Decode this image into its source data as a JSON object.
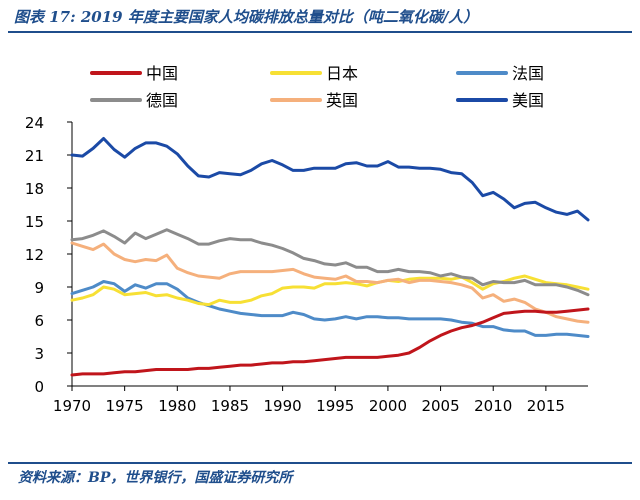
{
  "page": {
    "title": "图表 17:  2019 年度主要国家人均碳排放总量对比（吨二氧化碳/人）",
    "source": "资料来源：BP，世界银行，国盛证券研究所"
  },
  "colors": {
    "china": "#c0151b",
    "japan": "#f7e034",
    "france": "#4e8bc8",
    "germany": "#8c8c8c",
    "uk": "#f5b07c",
    "usa": "#1b4aa6",
    "axis": "#000000",
    "heading": "#1f4e8c"
  },
  "chart_data": {
    "type": "line",
    "title": "2019 年度主要国家人均碳排放总量对比（吨二氧化碳/人）",
    "xlabel": "",
    "ylabel": "",
    "ylim": [
      0,
      24
    ],
    "yticks": [
      0,
      3,
      6,
      9,
      12,
      15,
      18,
      21,
      24
    ],
    "xlim": [
      1970,
      2019
    ],
    "xticks": [
      1970,
      1975,
      1980,
      1985,
      1990,
      1995,
      2000,
      2005,
      2010,
      2015
    ],
    "legend_position": "top",
    "x": [
      1970,
      1971,
      1972,
      1973,
      1974,
      1975,
      1976,
      1977,
      1978,
      1979,
      1980,
      1981,
      1982,
      1983,
      1984,
      1985,
      1986,
      1987,
      1988,
      1989,
      1990,
      1991,
      1992,
      1993,
      1994,
      1995,
      1996,
      1997,
      1998,
      1999,
      2000,
      2001,
      2002,
      2003,
      2004,
      2005,
      2006,
      2007,
      2008,
      2009,
      2010,
      2011,
      2012,
      2013,
      2014,
      2015,
      2016,
      2017,
      2018,
      2019
    ],
    "series": [
      {
        "name": "中国",
        "key": "china",
        "values": [
          1.0,
          1.1,
          1.1,
          1.1,
          1.2,
          1.3,
          1.3,
          1.4,
          1.5,
          1.5,
          1.5,
          1.5,
          1.6,
          1.6,
          1.7,
          1.8,
          1.9,
          1.9,
          2.0,
          2.1,
          2.1,
          2.2,
          2.2,
          2.3,
          2.4,
          2.5,
          2.6,
          2.6,
          2.6,
          2.6,
          2.7,
          2.8,
          3.0,
          3.5,
          4.1,
          4.6,
          5.0,
          5.3,
          5.5,
          5.8,
          6.2,
          6.6,
          6.7,
          6.8,
          6.8,
          6.7,
          6.7,
          6.8,
          6.9,
          7.0
        ]
      },
      {
        "name": "日本",
        "key": "japan",
        "values": [
          7.8,
          8.0,
          8.3,
          9.0,
          8.8,
          8.3,
          8.4,
          8.5,
          8.2,
          8.3,
          8.0,
          7.8,
          7.5,
          7.4,
          7.8,
          7.6,
          7.6,
          7.8,
          8.2,
          8.4,
          8.9,
          9.0,
          9.0,
          8.9,
          9.3,
          9.3,
          9.4,
          9.3,
          9.1,
          9.4,
          9.6,
          9.5,
          9.7,
          9.8,
          9.8,
          9.8,
          9.7,
          9.9,
          9.4,
          8.8,
          9.3,
          9.5,
          9.8,
          10.0,
          9.7,
          9.4,
          9.3,
          9.2,
          9.0,
          8.8
        ]
      },
      {
        "name": "法国",
        "key": "france",
        "values": [
          8.4,
          8.7,
          9.0,
          9.5,
          9.3,
          8.6,
          9.2,
          8.9,
          9.3,
          9.3,
          8.8,
          8.0,
          7.6,
          7.3,
          7.0,
          6.8,
          6.6,
          6.5,
          6.4,
          6.4,
          6.4,
          6.7,
          6.5,
          6.1,
          6.0,
          6.1,
          6.3,
          6.1,
          6.3,
          6.3,
          6.2,
          6.2,
          6.1,
          6.1,
          6.1,
          6.1,
          6.0,
          5.8,
          5.7,
          5.4,
          5.4,
          5.1,
          5.0,
          5.0,
          4.6,
          4.6,
          4.7,
          4.7,
          4.6,
          4.5
        ]
      },
      {
        "name": "德国",
        "key": "germany",
        "values": [
          13.3,
          13.4,
          13.7,
          14.1,
          13.6,
          13.0,
          13.9,
          13.4,
          13.8,
          14.2,
          13.8,
          13.4,
          12.9,
          12.9,
          13.2,
          13.4,
          13.3,
          13.3,
          13.0,
          12.8,
          12.5,
          12.1,
          11.6,
          11.4,
          11.1,
          11.0,
          11.2,
          10.8,
          10.8,
          10.4,
          10.4,
          10.6,
          10.4,
          10.4,
          10.3,
          10.0,
          10.2,
          9.9,
          9.8,
          9.2,
          9.5,
          9.4,
          9.4,
          9.6,
          9.2,
          9.2,
          9.2,
          9.0,
          8.7,
          8.3
        ]
      },
      {
        "name": "英国",
        "key": "uk",
        "values": [
          13.0,
          12.7,
          12.4,
          12.9,
          12.0,
          11.5,
          11.3,
          11.5,
          11.4,
          11.9,
          10.7,
          10.3,
          10.0,
          9.9,
          9.8,
          10.2,
          10.4,
          10.4,
          10.4,
          10.4,
          10.5,
          10.6,
          10.2,
          9.9,
          9.8,
          9.7,
          10.0,
          9.5,
          9.5,
          9.4,
          9.6,
          9.7,
          9.4,
          9.6,
          9.6,
          9.5,
          9.4,
          9.2,
          8.9,
          8.0,
          8.3,
          7.7,
          7.9,
          7.6,
          7.0,
          6.7,
          6.3,
          6.1,
          5.9,
          5.8
        ]
      },
      {
        "name": "美国",
        "key": "usa",
        "values": [
          21.0,
          20.9,
          21.6,
          22.5,
          21.5,
          20.8,
          21.6,
          22.1,
          22.1,
          21.8,
          21.1,
          20.0,
          19.1,
          19.0,
          19.4,
          19.3,
          19.2,
          19.6,
          20.2,
          20.5,
          20.1,
          19.6,
          19.6,
          19.8,
          19.8,
          19.8,
          20.2,
          20.3,
          20.0,
          20.0,
          20.4,
          19.9,
          19.9,
          19.8,
          19.8,
          19.7,
          19.4,
          19.3,
          18.5,
          17.3,
          17.6,
          17.0,
          16.2,
          16.6,
          16.7,
          16.2,
          15.8,
          15.6,
          15.9,
          15.1
        ]
      }
    ],
    "legend_order": [
      "china",
      "japan",
      "france",
      "germany",
      "uk",
      "usa"
    ]
  }
}
